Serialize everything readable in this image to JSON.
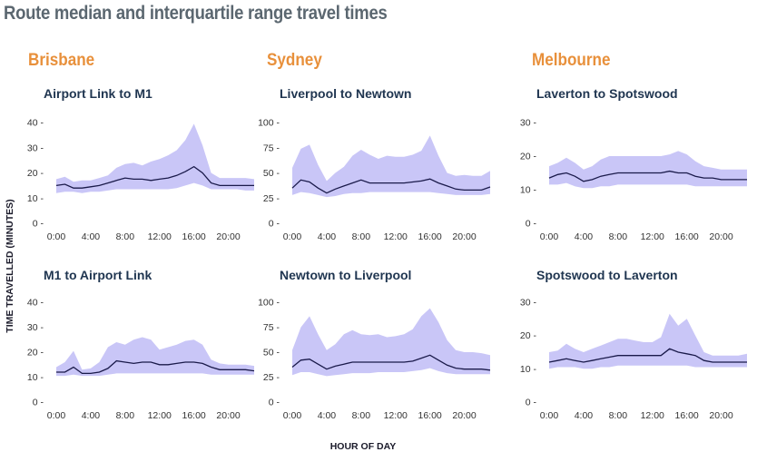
{
  "title": "Route median and interquartile range travel times",
  "cities": [
    "Brisbane",
    "Sydney",
    "Melbourne"
  ],
  "y_axis_label": "TIME TRAVELLED (MINUTES)",
  "x_axis_label": "HOUR OF DAY",
  "colors": {
    "band": "#c9c6f7",
    "median": "#1a1a4a",
    "city": "#e8903b",
    "title": "#5b6770",
    "subtitle": "#1f3550"
  },
  "chart_data": [
    {
      "type": "area",
      "title": "Airport Link to M1",
      "xticks": [
        "0:00",
        "4:00",
        "8:00",
        "12:00",
        "16:00",
        "20:00"
      ],
      "yticks": [
        0,
        10,
        20,
        30,
        40
      ],
      "ylim": [
        0,
        40
      ],
      "xlim": [
        0,
        23
      ],
      "x": [
        0,
        1,
        2,
        3,
        4,
        5,
        6,
        7,
        8,
        9,
        10,
        11,
        12,
        13,
        14,
        15,
        16,
        17,
        18,
        19,
        20,
        21,
        22,
        23
      ],
      "series": [
        {
          "role": "median",
          "values": [
            15,
            15.5,
            14,
            14,
            14.5,
            15,
            16,
            17,
            18,
            17.5,
            17.5,
            17,
            17.5,
            18,
            19,
            20.5,
            22.5,
            20,
            16,
            15,
            15,
            15,
            15,
            15
          ]
        },
        {
          "role": "q1",
          "values": [
            12,
            12.5,
            12.5,
            12,
            12.5,
            12.5,
            13,
            13.5,
            13.5,
            13.5,
            13.5,
            13.5,
            13.5,
            13.5,
            14,
            15,
            16,
            15,
            13.5,
            13.5,
            13.5,
            13.5,
            13,
            13
          ]
        },
        {
          "role": "q3",
          "values": [
            17.5,
            18.5,
            16.5,
            17,
            17,
            18,
            19,
            22,
            23.5,
            24,
            23,
            24.5,
            25.5,
            27,
            29,
            33,
            39.5,
            31,
            20,
            18,
            18,
            18,
            18,
            17.5
          ]
        }
      ]
    },
    {
      "type": "area",
      "title": "Liverpool to Newtown",
      "xticks": [
        "0:00",
        "4:00",
        "8:00",
        "12:00",
        "16:00",
        "20:00"
      ],
      "yticks": [
        0,
        25,
        50,
        75,
        100
      ],
      "ylim": [
        0,
        100
      ],
      "xlim": [
        0,
        23
      ],
      "x": [
        0,
        1,
        2,
        3,
        4,
        5,
        6,
        7,
        8,
        9,
        10,
        11,
        12,
        13,
        14,
        15,
        16,
        17,
        18,
        19,
        20,
        21,
        22,
        23
      ],
      "series": [
        {
          "role": "median",
          "values": [
            35,
            43,
            41,
            35,
            30,
            34,
            37,
            40,
            43,
            40,
            40,
            40,
            40,
            40,
            41,
            42,
            44,
            40,
            37,
            34,
            33,
            33,
            33,
            36
          ]
        },
        {
          "role": "q1",
          "values": [
            28,
            31,
            30,
            28,
            26,
            27,
            29,
            30,
            30,
            31,
            31,
            31,
            31,
            31,
            31,
            31,
            31,
            30,
            29,
            28,
            28,
            28,
            28,
            29
          ]
        },
        {
          "role": "q3",
          "values": [
            55,
            74,
            78,
            58,
            42,
            50,
            56,
            67,
            73,
            68,
            64,
            67,
            66,
            66,
            68,
            72,
            87,
            67,
            50,
            47,
            48,
            47,
            47,
            52
          ]
        }
      ]
    },
    {
      "type": "area",
      "title": "Laverton to Spotswood",
      "xticks": [
        "0:00",
        "4:00",
        "8:00",
        "12:00",
        "16:00",
        "20:00"
      ],
      "yticks": [
        0,
        10,
        20,
        30
      ],
      "ylim": [
        0,
        30
      ],
      "xlim": [
        0,
        23
      ],
      "x": [
        0,
        1,
        2,
        3,
        4,
        5,
        6,
        7,
        8,
        9,
        10,
        11,
        12,
        13,
        14,
        15,
        16,
        17,
        18,
        19,
        20,
        21,
        22,
        23
      ],
      "series": [
        {
          "role": "median",
          "values": [
            13.5,
            14.5,
            15,
            14,
            12.5,
            13,
            14,
            14.5,
            15,
            15,
            15,
            15,
            15,
            15,
            15.5,
            15,
            15,
            14,
            13.5,
            13.5,
            13,
            13,
            13,
            13
          ]
        },
        {
          "role": "q1",
          "values": [
            11.5,
            11.5,
            12,
            11,
            10.5,
            10.5,
            11,
            11,
            11.5,
            11.5,
            11.5,
            11.5,
            11.5,
            11.5,
            11.5,
            11.5,
            11.5,
            11,
            11,
            11,
            11,
            11,
            11,
            11
          ]
        },
        {
          "role": "q3",
          "values": [
            17,
            18,
            19.5,
            18,
            16,
            17,
            19,
            20,
            20,
            20,
            20,
            20,
            20,
            20,
            20.5,
            21.5,
            20.5,
            18.5,
            17,
            16.5,
            16,
            16,
            16,
            16
          ]
        }
      ]
    },
    {
      "type": "area",
      "title": "M1 to Airport Link",
      "xticks": [
        "0:00",
        "4:00",
        "8:00",
        "12:00",
        "16:00",
        "20:00"
      ],
      "yticks": [
        0,
        10,
        20,
        30,
        40
      ],
      "ylim": [
        0,
        40
      ],
      "xlim": [
        0,
        23
      ],
      "x": [
        0,
        1,
        2,
        3,
        4,
        5,
        6,
        7,
        8,
        9,
        10,
        11,
        12,
        13,
        14,
        15,
        16,
        17,
        18,
        19,
        20,
        21,
        22,
        23
      ],
      "series": [
        {
          "role": "median",
          "values": [
            12,
            12,
            14,
            11.5,
            11.5,
            12,
            13.5,
            16.5,
            16,
            15.5,
            16,
            16,
            15,
            15,
            15.5,
            16,
            16,
            15.5,
            14,
            13,
            13,
            13,
            13,
            12.5
          ]
        },
        {
          "role": "q1",
          "values": [
            10.5,
            10.5,
            11,
            10.5,
            10.5,
            10.5,
            11,
            11.5,
            11.5,
            11.5,
            11.5,
            11.5,
            11.5,
            11.5,
            11.5,
            11.5,
            11.5,
            11.5,
            11,
            11,
            11,
            11,
            11,
            11
          ]
        },
        {
          "role": "q3",
          "values": [
            14,
            16,
            20.5,
            13,
            13.5,
            16,
            22,
            24,
            23,
            25,
            26,
            25,
            21,
            22,
            23,
            24.5,
            25,
            23,
            17,
            15.5,
            15,
            15,
            15,
            14.5
          ]
        }
      ]
    },
    {
      "type": "area",
      "title": "Newtown to Liverpool",
      "xticks": [
        "0:00",
        "4:00",
        "8:00",
        "12:00",
        "16:00",
        "20:00"
      ],
      "yticks": [
        0,
        25,
        50,
        75,
        100
      ],
      "ylim": [
        0,
        100
      ],
      "xlim": [
        0,
        23
      ],
      "x": [
        0,
        1,
        2,
        3,
        4,
        5,
        6,
        7,
        8,
        9,
        10,
        11,
        12,
        13,
        14,
        15,
        16,
        17,
        18,
        19,
        20,
        21,
        22,
        23
      ],
      "series": [
        {
          "role": "median",
          "values": [
            35,
            42,
            43,
            38,
            33,
            36,
            38,
            40,
            40,
            40,
            40,
            40,
            40,
            40,
            41,
            44,
            47,
            42,
            37,
            34,
            33,
            33,
            33,
            32
          ]
        },
        {
          "role": "q1",
          "values": [
            27,
            30,
            30,
            28,
            26,
            27,
            28,
            29,
            29,
            29,
            30,
            30,
            30,
            30,
            31,
            32,
            34,
            31,
            29,
            28,
            28,
            28,
            28,
            28
          ]
        },
        {
          "role": "q3",
          "values": [
            52,
            75,
            86,
            68,
            52,
            58,
            68,
            72,
            68,
            67,
            68,
            65,
            66,
            68,
            73,
            86,
            94,
            80,
            62,
            52,
            50,
            50,
            49,
            47
          ]
        }
      ]
    },
    {
      "type": "area",
      "title": "Spotswood to Laverton",
      "xticks": [
        "0:00",
        "4:00",
        "8:00",
        "12:00",
        "16:00",
        "20:00"
      ],
      "yticks": [
        0,
        10,
        20,
        30
      ],
      "ylim": [
        0,
        30
      ],
      "xlim": [
        0,
        23
      ],
      "x": [
        0,
        1,
        2,
        3,
        4,
        5,
        6,
        7,
        8,
        9,
        10,
        11,
        12,
        13,
        14,
        15,
        16,
        17,
        18,
        19,
        20,
        21,
        22,
        23
      ],
      "series": [
        {
          "role": "median",
          "values": [
            12,
            12.5,
            13,
            12.5,
            12,
            12.5,
            13,
            13.5,
            14,
            14,
            14,
            14,
            14,
            14,
            16,
            15,
            14.5,
            14,
            12.5,
            12,
            12,
            12,
            12,
            12
          ]
        },
        {
          "role": "q1",
          "values": [
            10,
            10.5,
            10.5,
            10.5,
            10,
            10,
            10.5,
            10.5,
            11,
            11,
            11,
            11,
            11,
            11,
            11,
            11,
            11,
            10.5,
            10.5,
            10.5,
            10.5,
            10.5,
            10.5,
            10.5
          ]
        },
        {
          "role": "q3",
          "values": [
            15,
            15.5,
            17.5,
            16,
            15,
            16,
            17,
            18,
            19,
            19,
            18.5,
            18,
            18,
            19.5,
            26.5,
            23,
            25,
            20,
            15,
            14,
            14,
            14,
            14,
            14.5
          ]
        }
      ]
    }
  ]
}
